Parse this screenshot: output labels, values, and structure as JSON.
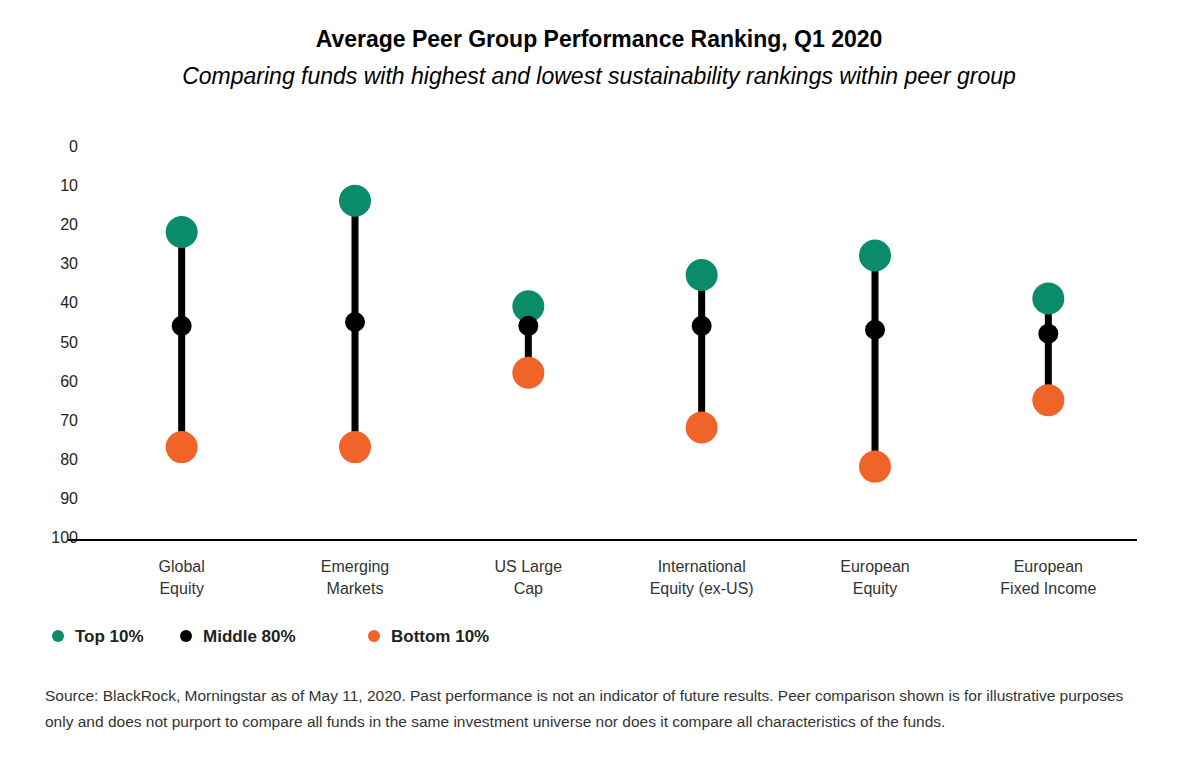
{
  "chart_data": {
    "type": "dumbbell",
    "title": "Average Peer Group Performance Ranking, Q1 2020",
    "subtitle": "Comparing funds with highest and lowest sustainability rankings within peer group",
    "categories": [
      "Global\nEquity",
      "Emerging\nMarkets",
      "US Large\nCap",
      "International\nEquity (ex-US)",
      "European\nEquity",
      "European\nFixed Income"
    ],
    "series": [
      {
        "name": "Top 10%",
        "color": "#0a8c6b",
        "marker": "circle",
        "values": [
          22,
          14,
          41,
          33,
          28,
          39
        ]
      },
      {
        "name": "Middle 80%",
        "color": "#000000",
        "marker": "circle",
        "values": [
          46,
          45,
          46,
          46,
          47,
          48
        ]
      },
      {
        "name": "Bottom 10%",
        "color": "#f0642a",
        "marker": "circle",
        "values": [
          77,
          77,
          58,
          72,
          82,
          65
        ]
      }
    ],
    "ylim": [
      0,
      100
    ],
    "yticks": [
      0,
      10,
      20,
      30,
      40,
      50,
      60,
      70,
      80,
      90,
      100
    ],
    "grid": false,
    "legend": "bottom-left",
    "source": "Source: BlackRock, Morningstar as of May 11, 2020. Past performance is not an indicator of future results. Peer comparison shown is for illustrative purposes only and does not purport to compare all funds in the same investment universe nor does it compare all characteristics of the funds."
  }
}
